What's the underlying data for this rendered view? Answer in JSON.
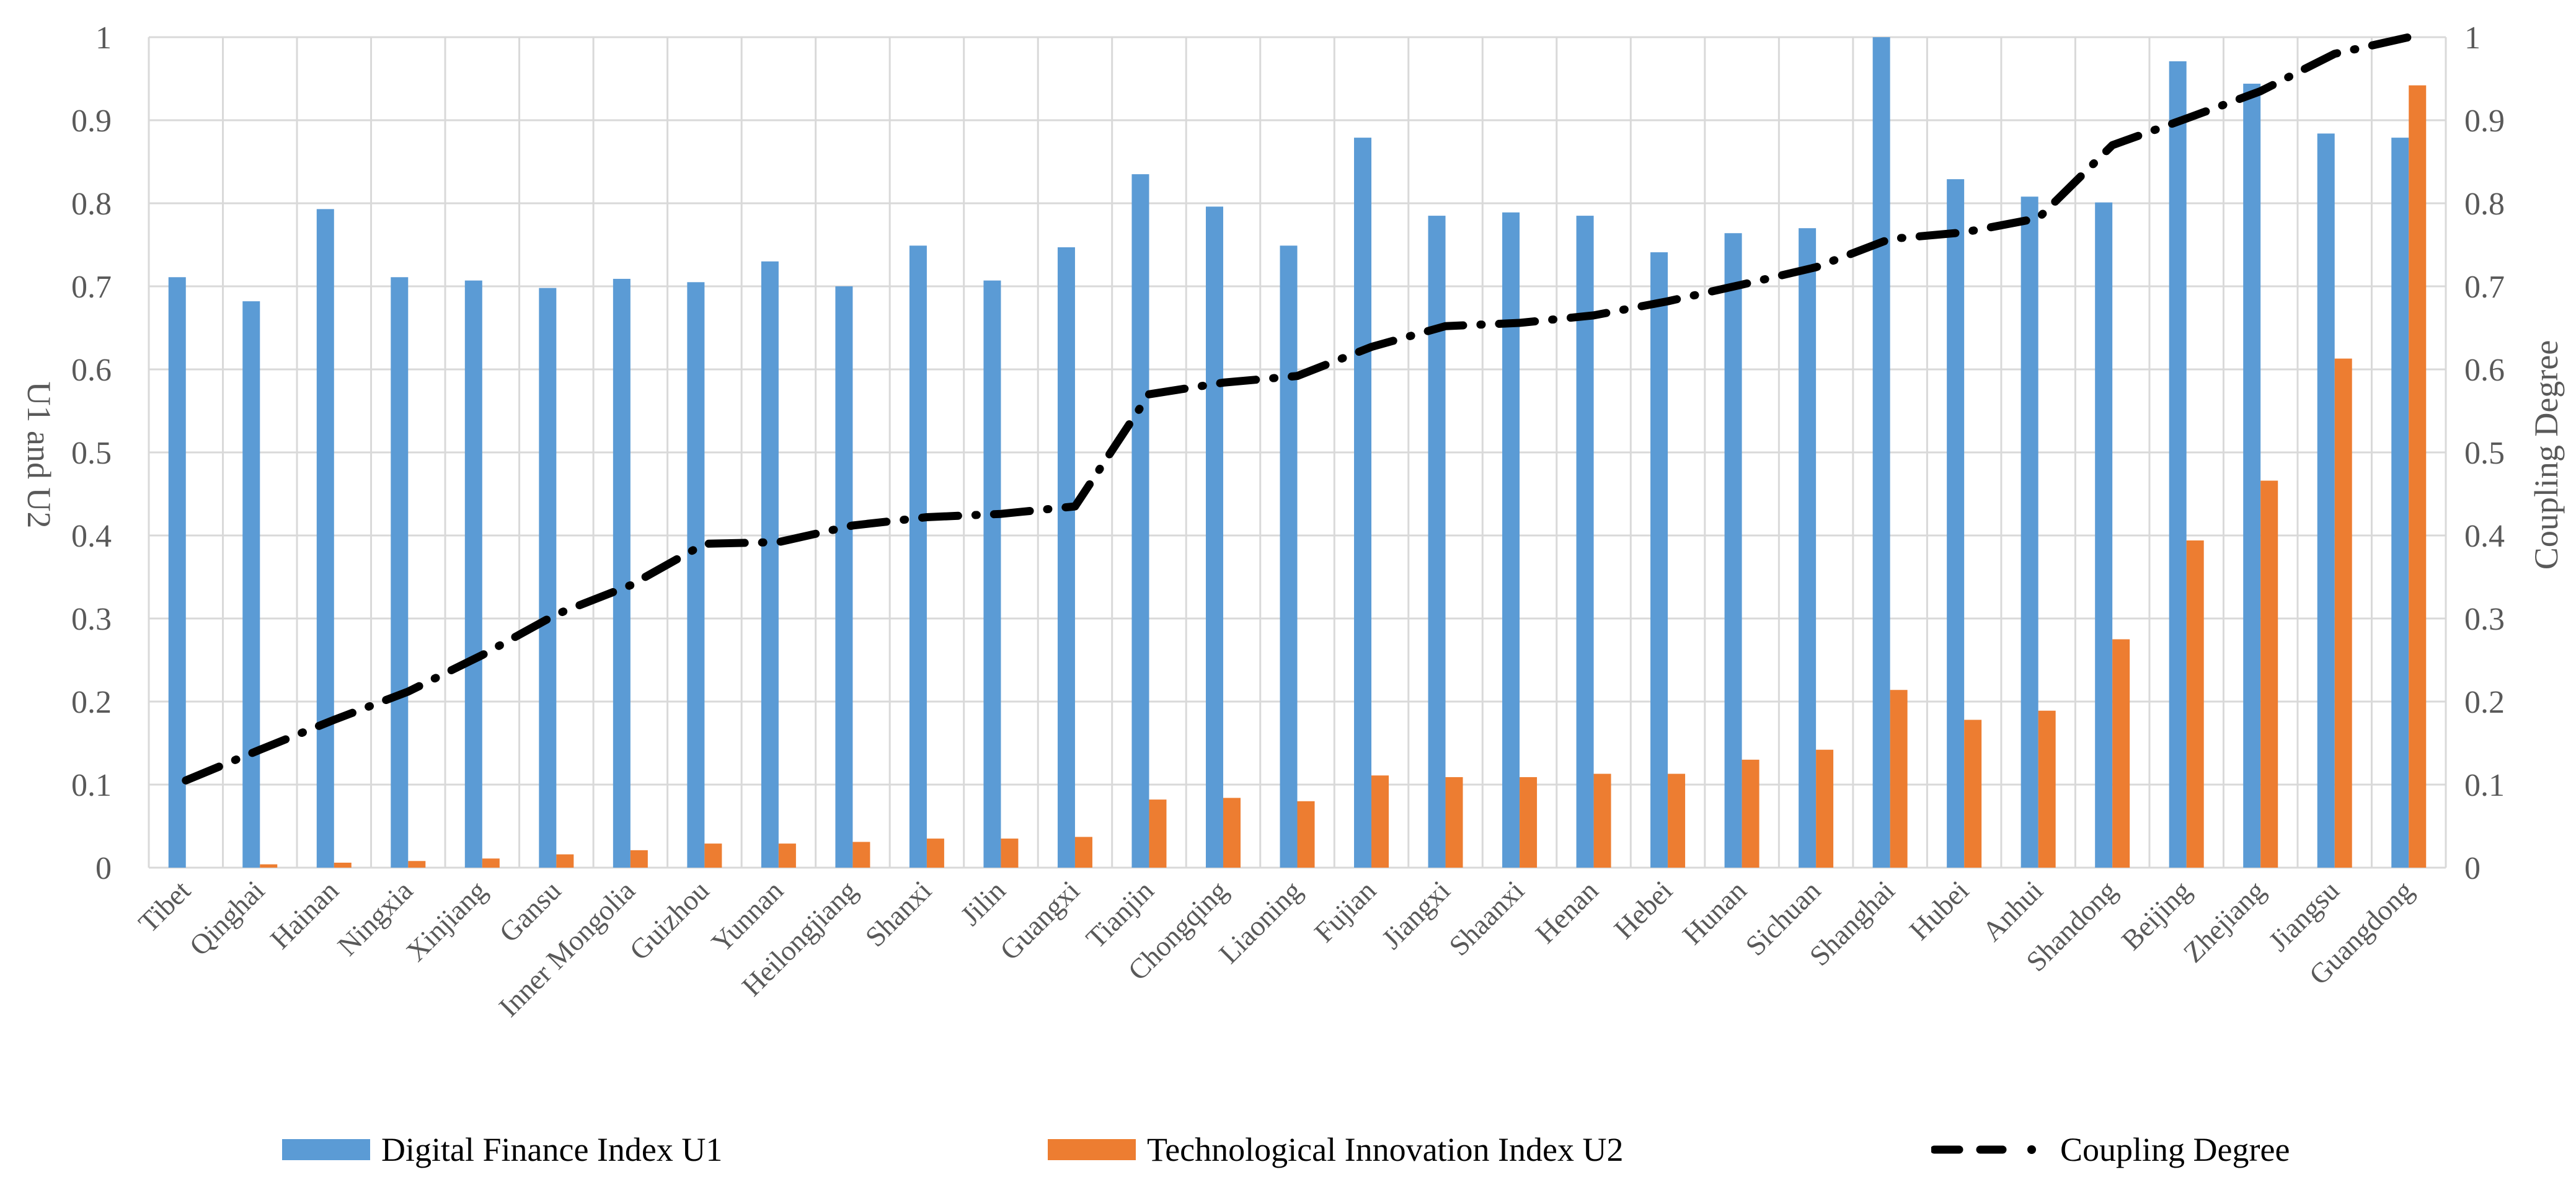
{
  "chart_data": {
    "type": "bar",
    "categories": [
      "Tibet",
      "Qinghai",
      "Hainan",
      "Ningxia",
      "Xinjiang",
      "Gansu",
      "Inner Mongolia",
      "Guizhou",
      "Yunnan",
      "Heilongjiang",
      "Shanxi",
      "Jilin",
      "Guangxi",
      "Tianjin",
      "Chongqing",
      "Liaoning",
      "Fujian",
      "Jiangxi",
      "Shaanxi",
      "Henan",
      "Hebei",
      "Hunan",
      "Sichuan",
      "Shanghai",
      "Hubei",
      "Anhui",
      "Shandong",
      "Beijing",
      "Zhejiang",
      "Jiangsu",
      "Guangdong"
    ],
    "series": [
      {
        "name": "Digital Finance Index U1",
        "type": "bar",
        "axis": "left",
        "color": "#5B9BD5",
        "values": [
          0.711,
          0.682,
          0.793,
          0.711,
          0.707,
          0.698,
          0.709,
          0.705,
          0.73,
          0.7,
          0.749,
          0.707,
          0.747,
          0.835,
          0.796,
          0.749,
          0.879,
          0.785,
          0.789,
          0.785,
          0.741,
          0.764,
          0.77,
          1.0,
          0.829,
          0.808,
          0.801,
          0.971,
          0.944,
          0.884,
          0.879
        ]
      },
      {
        "name": "Technological Innovation Index U2",
        "type": "bar",
        "axis": "left",
        "color": "#ED7D31",
        "values": [
          0.0,
          0.004,
          0.006,
          0.008,
          0.011,
          0.016,
          0.021,
          0.029,
          0.029,
          0.031,
          0.035,
          0.035,
          0.037,
          0.082,
          0.084,
          0.08,
          0.111,
          0.109,
          0.109,
          0.113,
          0.113,
          0.13,
          0.142,
          0.214,
          0.178,
          0.189,
          0.275,
          0.394,
          0.466,
          0.613,
          0.942
        ]
      },
      {
        "name": "Coupling Degree",
        "type": "line",
        "axis": "right",
        "color": "#000000",
        "dash": "dash-dot",
        "values": [
          0.105,
          0.142,
          0.178,
          0.212,
          0.256,
          0.305,
          0.34,
          0.39,
          0.392,
          0.412,
          0.422,
          0.426,
          0.435,
          0.57,
          0.584,
          0.592,
          0.627,
          0.652,
          0.656,
          0.665,
          0.682,
          0.702,
          0.723,
          0.757,
          0.765,
          0.782,
          0.87,
          0.902,
          0.935,
          0.98,
          1.0
        ]
      }
    ],
    "title": "",
    "xlabel": "",
    "ylabel": "U1 and U2",
    "y2label": "Coupling Degree",
    "ylim": [
      0,
      1
    ],
    "y2lim": [
      0,
      1
    ],
    "yticks": [
      "0",
      "0.1",
      "0.2",
      "0.3",
      "0.4",
      "0.5",
      "0.6",
      "0.7",
      "0.8",
      "0.9",
      "1"
    ],
    "grid": true,
    "legend_position": "bottom"
  }
}
